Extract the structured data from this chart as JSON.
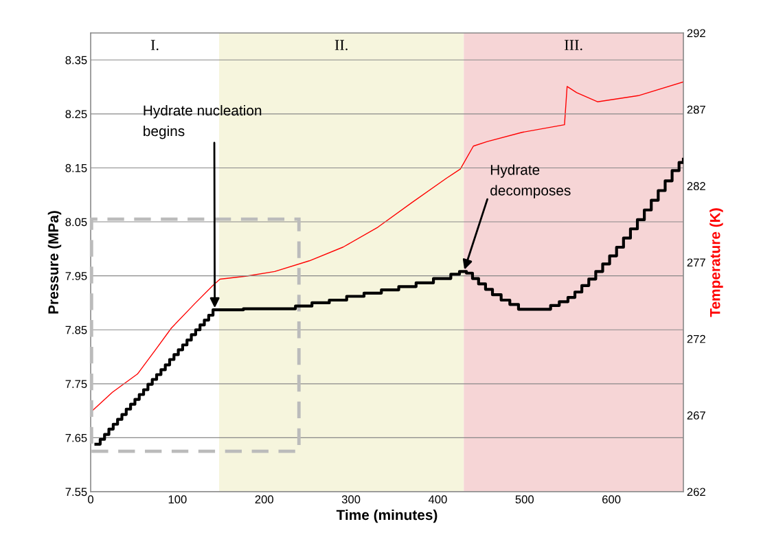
{
  "chart_data": {
    "type": "line",
    "xlabel": "Time (minutes)",
    "ylabel": "Pressure (MPa)",
    "y2label": "Temperature (K)",
    "xlim": [
      0,
      683
    ],
    "xticks": [
      0,
      100,
      200,
      300,
      400,
      500,
      600
    ],
    "ylim": [
      7.55,
      8.4
    ],
    "yticks": [
      7.55,
      7.65,
      7.75,
      7.85,
      7.95,
      8.05,
      8.15,
      8.25,
      8.35
    ],
    "y2lim": [
      262,
      292
    ],
    "y2ticks": [
      262,
      267,
      272,
      277,
      282,
      287,
      292
    ],
    "grid": "y",
    "legend": false,
    "bands": [
      {
        "axis": "x",
        "from": 148,
        "to": 430,
        "label": "II.",
        "color": "#f6f5dd"
      },
      {
        "axis": "x",
        "from": 430,
        "to": 683,
        "label": "III.",
        "color": "#f6d5d6"
      }
    ],
    "series": [
      {
        "type": "step",
        "color": "#000000",
        "x": [
          6,
          11,
          16,
          21,
          26,
          31,
          36,
          41,
          46,
          51,
          56,
          61,
          66,
          71,
          76,
          81,
          86,
          91,
          96,
          101,
          106,
          111,
          116,
          121,
          126,
          131,
          136,
          141,
          176,
          236,
          255,
          275,
          295,
          315,
          335,
          355,
          375,
          395,
          415,
          425,
          433,
          440,
          447,
          455,
          463,
          473,
          483,
          493,
          521,
          530,
          540,
          550,
          558,
          566,
          574,
          582,
          590,
          598,
          606,
          614,
          622,
          630,
          638,
          646,
          654,
          662,
          670,
          678,
          683
        ],
        "values": [
          7.638,
          7.647,
          7.656,
          7.666,
          7.675,
          7.684,
          7.693,
          7.703,
          7.712,
          7.721,
          7.73,
          7.739,
          7.749,
          7.758,
          7.767,
          7.776,
          7.785,
          7.795,
          7.804,
          7.813,
          7.822,
          7.831,
          7.841,
          7.85,
          7.859,
          7.868,
          7.877,
          7.887,
          7.889,
          7.894,
          7.9,
          7.905,
          7.912,
          7.918,
          7.924,
          7.93,
          7.937,
          7.945,
          7.953,
          7.958,
          7.955,
          7.945,
          7.935,
          7.925,
          7.915,
          7.905,
          7.897,
          7.888,
          7.888,
          7.895,
          7.902,
          7.91,
          7.92,
          7.932,
          7.944,
          7.958,
          7.972,
          7.987,
          8.003,
          8.02,
          8.037,
          8.054,
          8.072,
          8.09,
          8.108,
          8.126,
          8.145,
          8.16,
          8.166
        ]
      },
      {
        "axis": "y2",
        "color": "#ff0000",
        "x": [
          2,
          25,
          54,
          75,
          93,
          120,
          141,
          149,
          180,
          212,
          252,
          291,
          331,
          370,
          410,
          426,
          441,
          457,
          497,
          546,
          549,
          560,
          584,
          631,
          683
        ],
        "values": [
          267.3,
          268.5,
          269.7,
          271.3,
          272.7,
          274.3,
          275.5,
          275.9,
          276.1,
          276.4,
          277.1,
          278.0,
          279.3,
          280.9,
          282.5,
          283.1,
          284.6,
          284.9,
          285.5,
          286.0,
          288.5,
          288.1,
          287.5,
          287.9,
          288.8
        ]
      }
    ],
    "annotations": [
      "I.",
      {
        "text": "Hydrate nucleation\nbegins",
        "x": 143,
        "y": 7.887
      },
      {
        "text": "Hydrate\ndecomposes",
        "x": 430,
        "y": 7.958
      }
    ]
  }
}
